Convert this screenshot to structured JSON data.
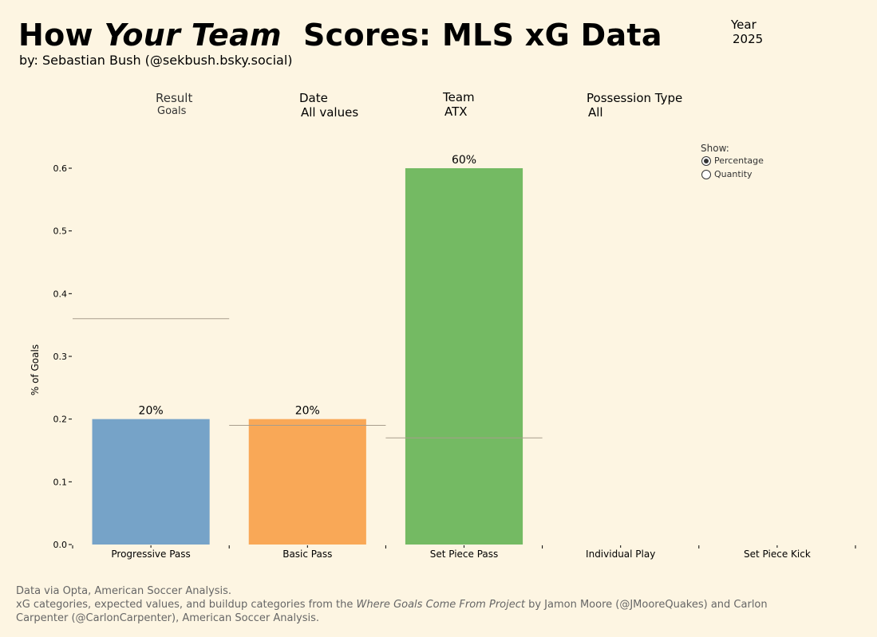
{
  "header": {
    "title_part1": "How ",
    "title_italic": "Your Team",
    "title_part2": "  Scores: MLS xG Data",
    "byline": "by: Sebastian Bush (@sekbush.bsky.social)",
    "year_label": "Year",
    "year_value": "2025"
  },
  "filters": {
    "result": {
      "label": "Result",
      "value": "Goals"
    },
    "date": {
      "label": "Date",
      "value": "All values"
    },
    "team": {
      "label": "Team",
      "value": "ATX"
    },
    "possession": {
      "label": "Possession Type",
      "value": "All"
    }
  },
  "toggle": {
    "label": "Show:",
    "options": [
      "Percentage",
      "Quantity"
    ],
    "selected": "Percentage"
  },
  "footer": {
    "line1": "Data via Opta, American Soccer Analysis.",
    "line2_pre": "xG categories, expected values, and buildup categories from the ",
    "line2_italic": "Where Goals Come From Project",
    "line2_post": " by Jamon Moore (@JMooreQuakes) and Carlon Carpenter (@CarlonCarpenter), American Soccer Analysis."
  },
  "chart_data": {
    "type": "bar",
    "title": "",
    "xlabel": "",
    "ylabel": "% of Goals",
    "ylim": [
      0,
      0.6
    ],
    "yticks": [
      "0.0",
      "0.1",
      "0.2",
      "0.3",
      "0.4",
      "0.5",
      "0.6"
    ],
    "categories": [
      "Progressive Pass",
      "Basic Pass",
      "Set Piece Pass",
      "Individual Play",
      "Set Piece Kick"
    ],
    "values": [
      0.2,
      0.2,
      0.6,
      0,
      0
    ],
    "data_labels": [
      "20%",
      "20%",
      "60%",
      "",
      ""
    ],
    "reference_values": [
      0.36,
      0.19,
      0.17,
      null,
      null
    ],
    "colors": [
      "#76a3c8",
      "#f9a857",
      "#74ba63",
      "#cccccc",
      "#cccccc"
    ],
    "reference_line_color": "#a89d8c",
    "grid": false,
    "legend": "none"
  }
}
